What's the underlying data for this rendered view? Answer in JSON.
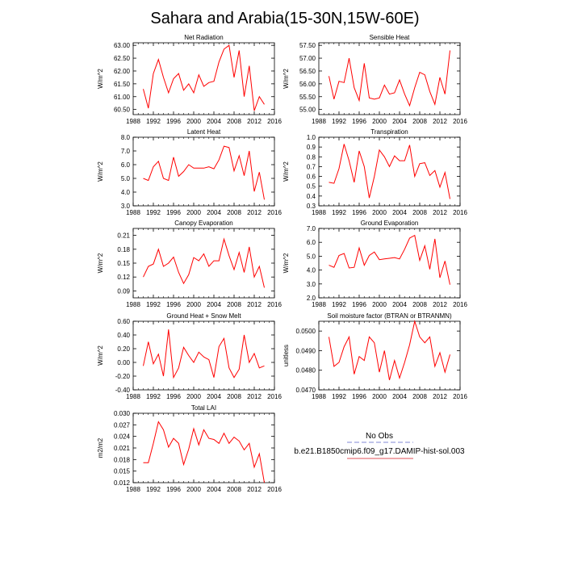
{
  "figure": {
    "title": "Sahara and Arabia(15-30N,15W-60E)"
  },
  "legend": {
    "entries": [
      {
        "label": "No Obs",
        "color": "#9aa0dd",
        "style": "dashed"
      },
      {
        "label": "b.e21.B1850cmip6.f09_g17.DAMIP-hist-sol.003",
        "color": "#e8737a",
        "style": "solid"
      }
    ]
  },
  "chart_data": [
    {
      "type": "line",
      "title": "Net Radiation",
      "ylabel": "W/m^2",
      "xlim": [
        1988,
        2016
      ],
      "ylim": [
        60.3,
        63.1
      ],
      "xticks": [
        1988,
        1992,
        1996,
        2000,
        2004,
        2008,
        2012,
        2016
      ],
      "yticks": [
        "60.50",
        "61.00",
        "61.50",
        "62.00",
        "62.50",
        "63.00"
      ],
      "ytick_values": [
        60.5,
        61.0,
        61.5,
        62.0,
        62.5,
        63.0
      ],
      "series": [
        {
          "color": "#ff0000",
          "x": [
            1990,
            1991,
            1992,
            1993,
            1994,
            1995,
            1996,
            1997,
            1998,
            1999,
            2000,
            2001,
            2002,
            2003,
            2004,
            2005,
            2006,
            2007,
            2008,
            2009,
            2010,
            2011,
            2012,
            2013,
            2014
          ],
          "y": [
            61.3,
            60.55,
            61.9,
            62.45,
            61.75,
            61.15,
            61.7,
            61.9,
            61.25,
            61.5,
            61.15,
            61.85,
            61.4,
            61.55,
            61.6,
            62.35,
            62.85,
            63.0,
            61.75,
            62.8,
            61.0,
            62.2,
            60.45,
            61.0,
            60.7
          ]
        }
      ]
    },
    {
      "type": "line",
      "title": "Sensible Heat",
      "ylabel": "W/m^2",
      "xlim": [
        1988,
        2016
      ],
      "ylim": [
        54.8,
        57.6
      ],
      "xticks": [
        1988,
        1992,
        1996,
        2000,
        2004,
        2008,
        2012,
        2016
      ],
      "yticks": [
        "55.00",
        "55.50",
        "56.00",
        "56.50",
        "57.00",
        "57.50"
      ],
      "ytick_values": [
        55.0,
        55.5,
        56.0,
        56.5,
        57.0,
        57.5
      ],
      "series": [
        {
          "color": "#ff0000",
          "x": [
            1990,
            1991,
            1992,
            1993,
            1994,
            1995,
            1996,
            1997,
            1998,
            1999,
            2000,
            2001,
            2002,
            2003,
            2004,
            2005,
            2006,
            2007,
            2008,
            2009,
            2010,
            2011,
            2012,
            2013,
            2014
          ],
          "y": [
            56.3,
            55.4,
            56.1,
            56.05,
            57.0,
            55.85,
            55.35,
            56.8,
            55.45,
            55.4,
            55.45,
            55.95,
            55.6,
            55.65,
            56.15,
            55.6,
            55.15,
            55.85,
            56.45,
            56.35,
            55.7,
            55.2,
            56.25,
            55.6,
            57.3
          ]
        }
      ]
    },
    {
      "type": "line",
      "title": "Latent Heat",
      "ylabel": "W/m^2",
      "xlim": [
        1988,
        2016
      ],
      "ylim": [
        3.0,
        8.0
      ],
      "xticks": [
        1988,
        1992,
        1996,
        2000,
        2004,
        2008,
        2012,
        2016
      ],
      "yticks": [
        "3.0",
        "4.0",
        "5.0",
        "6.0",
        "7.0",
        "8.0"
      ],
      "ytick_values": [
        3,
        4,
        5,
        6,
        7,
        8
      ],
      "series": [
        {
          "color": "#ff0000",
          "x": [
            1990,
            1991,
            1992,
            1993,
            1994,
            1995,
            1996,
            1997,
            1998,
            1999,
            2000,
            2001,
            2002,
            2003,
            2004,
            2005,
            2006,
            2007,
            2008,
            2009,
            2010,
            2011,
            2012,
            2013,
            2014
          ],
          "y": [
            5.0,
            4.85,
            5.85,
            6.25,
            5.0,
            4.85,
            6.55,
            5.15,
            5.5,
            6.0,
            5.75,
            5.75,
            5.75,
            5.85,
            5.7,
            6.35,
            7.35,
            7.25,
            5.55,
            6.65,
            5.2,
            7.0,
            4.05,
            5.45,
            3.45
          ]
        }
      ]
    },
    {
      "type": "line",
      "title": "Transpiration",
      "ylabel": "W/m^2",
      "xlim": [
        1988,
        2016
      ],
      "ylim": [
        0.3,
        1.0
      ],
      "xticks": [
        1988,
        1992,
        1996,
        2000,
        2004,
        2008,
        2012,
        2016
      ],
      "yticks": [
        "0.3",
        "0.4",
        "0.5",
        "0.6",
        "0.7",
        "0.8",
        "0.9",
        "1.0"
      ],
      "ytick_values": [
        0.3,
        0.4,
        0.5,
        0.6,
        0.7,
        0.8,
        0.9,
        1.0
      ],
      "series": [
        {
          "color": "#ff0000",
          "x": [
            1990,
            1991,
            1992,
            1993,
            1994,
            1995,
            1996,
            1997,
            1998,
            1999,
            2000,
            2001,
            2002,
            2003,
            2004,
            2005,
            2006,
            2007,
            2008,
            2009,
            2010,
            2011,
            2012,
            2013,
            2014
          ],
          "y": [
            0.54,
            0.53,
            0.68,
            0.93,
            0.76,
            0.54,
            0.86,
            0.7,
            0.38,
            0.6,
            0.87,
            0.8,
            0.7,
            0.81,
            0.76,
            0.76,
            0.92,
            0.6,
            0.73,
            0.74,
            0.61,
            0.66,
            0.49,
            0.64,
            0.37
          ]
        }
      ]
    },
    {
      "type": "line",
      "title": "Canopy Evaporation",
      "ylabel": "W/m^2",
      "xlim": [
        1988,
        2016
      ],
      "ylim": [
        0.075,
        0.225
      ],
      "xticks": [
        1988,
        1992,
        1996,
        2000,
        2004,
        2008,
        2012,
        2016
      ],
      "yticks": [
        "0.09",
        "0.12",
        "0.15",
        "0.18",
        "0.21"
      ],
      "ytick_values": [
        0.09,
        0.12,
        0.15,
        0.18,
        0.21
      ],
      "series": [
        {
          "color": "#ff0000",
          "x": [
            1990,
            1991,
            1992,
            1993,
            1994,
            1995,
            1996,
            1997,
            1998,
            1999,
            2000,
            2001,
            2002,
            2003,
            2004,
            2005,
            2006,
            2007,
            2008,
            2009,
            2010,
            2011,
            2012,
            2013,
            2014
          ],
          "y": [
            0.12,
            0.143,
            0.148,
            0.18,
            0.143,
            0.15,
            0.163,
            0.13,
            0.106,
            0.125,
            0.162,
            0.155,
            0.17,
            0.143,
            0.155,
            0.155,
            0.202,
            0.166,
            0.136,
            0.173,
            0.13,
            0.185,
            0.12,
            0.143,
            0.097
          ]
        }
      ]
    },
    {
      "type": "line",
      "title": "Ground Evaporation",
      "ylabel": "W/m^2",
      "xlim": [
        1988,
        2016
      ],
      "ylim": [
        2.0,
        7.0
      ],
      "xticks": [
        1988,
        1992,
        1996,
        2000,
        2004,
        2008,
        2012,
        2016
      ],
      "yticks": [
        "2.0",
        "3.0",
        "4.0",
        "5.0",
        "6.0",
        "7.0"
      ],
      "ytick_values": [
        2,
        3,
        4,
        5,
        6,
        7
      ],
      "series": [
        {
          "color": "#ff0000",
          "x": [
            1990,
            1991,
            1992,
            1993,
            1994,
            1995,
            1996,
            1997,
            1998,
            1999,
            2000,
            2001,
            2002,
            2003,
            2004,
            2005,
            2006,
            2007,
            2008,
            2009,
            2010,
            2011,
            2012,
            2013,
            2014
          ],
          "y": [
            4.35,
            4.2,
            5.05,
            5.2,
            4.15,
            4.2,
            5.6,
            4.35,
            5.05,
            5.3,
            4.75,
            4.8,
            4.85,
            4.9,
            4.8,
            5.5,
            6.3,
            6.5,
            4.7,
            5.75,
            4.05,
            6.25,
            3.45,
            4.65,
            2.95
          ]
        }
      ]
    },
    {
      "type": "line",
      "title": "Ground Heat + Snow Melt",
      "ylabel": "W/m^2",
      "xlim": [
        1988,
        2016
      ],
      "ylim": [
        -0.4,
        0.6
      ],
      "xticks": [
        1988,
        1992,
        1996,
        2000,
        2004,
        2008,
        2012,
        2016
      ],
      "yticks": [
        "-0.40",
        "-0.20",
        "0.00",
        "0.20",
        "0.40",
        "0.60"
      ],
      "ytick_values": [
        -0.4,
        -0.2,
        0.0,
        0.2,
        0.4,
        0.6
      ],
      "series": [
        {
          "color": "#ff0000",
          "x": [
            1990,
            1991,
            1992,
            1993,
            1994,
            1995,
            1996,
            1997,
            1998,
            1999,
            2000,
            2001,
            2002,
            2003,
            2004,
            2005,
            2006,
            2007,
            2008,
            2009,
            2010,
            2011,
            2012,
            2013,
            2014
          ],
          "y": [
            -0.05,
            0.3,
            -0.02,
            0.12,
            -0.2,
            0.48,
            -0.22,
            -0.08,
            0.22,
            0.1,
            0.0,
            0.15,
            0.08,
            0.04,
            -0.22,
            0.23,
            0.35,
            -0.08,
            -0.22,
            -0.1,
            0.4,
            0.0,
            0.13,
            -0.08,
            -0.05
          ]
        }
      ]
    },
    {
      "type": "line",
      "title": "Soil moisture factor (BTRAN or BTRANMN)",
      "ylabel": "unitless",
      "xlim": [
        1988,
        2016
      ],
      "ylim": [
        0.047,
        0.0505
      ],
      "xticks": [
        1988,
        1992,
        1996,
        2000,
        2004,
        2008,
        2012,
        2016
      ],
      "yticks": [
        "0.0470",
        "0.0480",
        "0.0490",
        "0.0500"
      ],
      "ytick_values": [
        0.047,
        0.048,
        0.049,
        0.05
      ],
      "series": [
        {
          "color": "#ff0000",
          "x": [
            1990,
            1991,
            1992,
            1993,
            1994,
            1995,
            1996,
            1997,
            1998,
            1999,
            2000,
            2001,
            2002,
            2003,
            2004,
            2005,
            2006,
            2007,
            2008,
            2009,
            2010,
            2011,
            2012,
            2013,
            2014
          ],
          "y": [
            0.0497,
            0.0482,
            0.0484,
            0.0492,
            0.0497,
            0.0478,
            0.0487,
            0.0485,
            0.0497,
            0.0494,
            0.0479,
            0.049,
            0.0475,
            0.0485,
            0.0476,
            0.0484,
            0.0493,
            0.0505,
            0.0497,
            0.0494,
            0.0497,
            0.0482,
            0.0489,
            0.0479,
            0.0488
          ]
        }
      ]
    },
    {
      "type": "line",
      "title": "Total LAI",
      "ylabel": "m2/m2",
      "xlim": [
        1988,
        2016
      ],
      "ylim": [
        0.012,
        0.03
      ],
      "xticks": [
        1988,
        1992,
        1996,
        2000,
        2004,
        2008,
        2012,
        2016
      ],
      "yticks": [
        "0.012",
        "0.015",
        "0.018",
        "0.021",
        "0.024",
        "0.027",
        "0.030"
      ],
      "ytick_values": [
        0.012,
        0.015,
        0.018,
        0.021,
        0.024,
        0.027,
        0.03
      ],
      "series": [
        {
          "color": "#ff0000",
          "x": [
            1990,
            1991,
            1992,
            1993,
            1994,
            1995,
            1996,
            1997,
            1998,
            1999,
            2000,
            2001,
            2002,
            2003,
            2004,
            2005,
            2006,
            2007,
            2008,
            2009,
            2010,
            2011,
            2012,
            2013,
            2014
          ],
          "y": [
            0.0172,
            0.0172,
            0.0222,
            0.0278,
            0.0257,
            0.0212,
            0.0235,
            0.0222,
            0.0167,
            0.0207,
            0.026,
            0.0218,
            0.0257,
            0.0235,
            0.0232,
            0.0222,
            0.0248,
            0.0222,
            0.0238,
            0.0228,
            0.0205,
            0.0222,
            0.016,
            0.0195,
            0.012
          ]
        }
      ]
    }
  ]
}
